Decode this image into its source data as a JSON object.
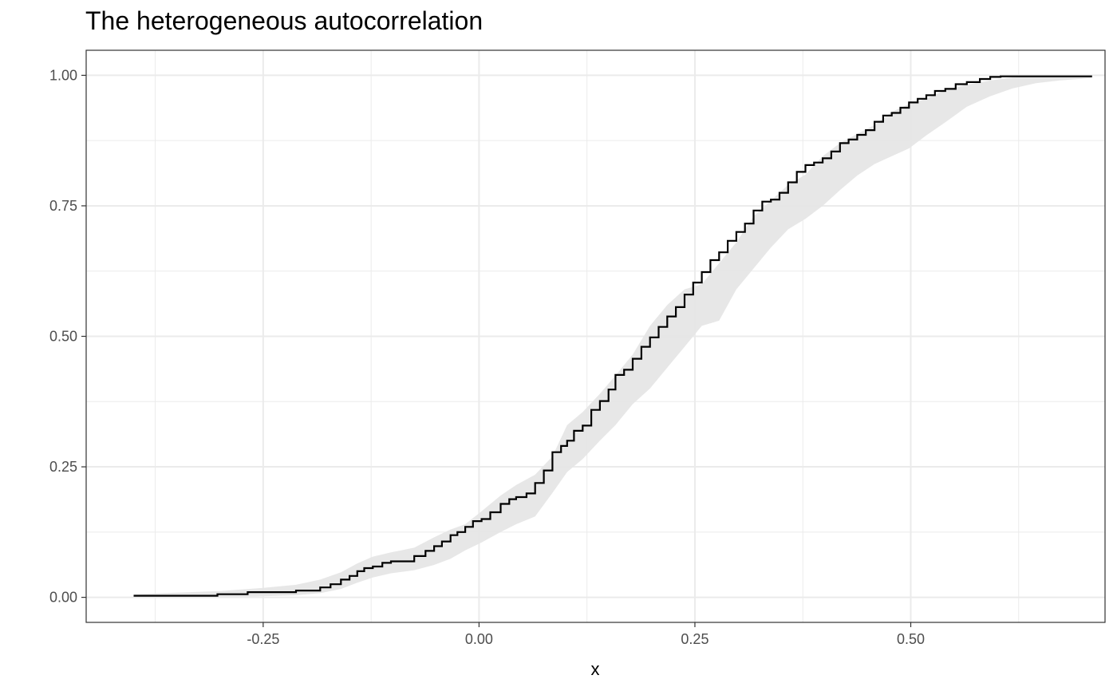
{
  "chart_data": {
    "type": "line",
    "title": "The heterogeneous autocorrelation",
    "xlabel": "x",
    "ylabel": "",
    "xlim": [
      -0.455,
      0.725
    ],
    "ylim": [
      -0.048,
      1.048
    ],
    "x_ticks": [
      -0.25,
      0.0,
      0.25,
      0.5
    ],
    "x_tick_labels": [
      "-0.25",
      "0.00",
      "0.25",
      "0.50"
    ],
    "y_ticks": [
      0.0,
      0.25,
      0.5,
      0.75,
      1.0
    ],
    "y_tick_labels": [
      "0.00",
      "0.25",
      "0.50",
      "0.75",
      "1.00"
    ],
    "grid": true,
    "legend": "none",
    "colors": {
      "line": "#000000",
      "band": "#e6e6e6",
      "grid": "#ebebeb",
      "panel_border": "#333333"
    },
    "series": [
      {
        "kind": "step",
        "x": [
          -0.4,
          -0.303,
          -0.268,
          -0.212,
          -0.184,
          -0.172,
          -0.16,
          -0.15,
          -0.141,
          -0.133,
          -0.123,
          -0.112,
          -0.102,
          -0.075,
          -0.062,
          -0.052,
          -0.043,
          -0.033,
          -0.025,
          -0.016,
          -0.007,
          0.003,
          0.013,
          0.025,
          0.035,
          0.043,
          0.055,
          0.065,
          0.075,
          0.085,
          0.095,
          0.102,
          0.11,
          0.12,
          0.13,
          0.14,
          0.15,
          0.158,
          0.168,
          0.178,
          0.188,
          0.198,
          0.208,
          0.218,
          0.228,
          0.238,
          0.248,
          0.258,
          0.268,
          0.278,
          0.288,
          0.298,
          0.308,
          0.318,
          0.328,
          0.338,
          0.348,
          0.358,
          0.368,
          0.378,
          0.388,
          0.398,
          0.408,
          0.418,
          0.428,
          0.438,
          0.448,
          0.458,
          0.468,
          0.478,
          0.488,
          0.498,
          0.508,
          0.518,
          0.528,
          0.54,
          0.552,
          0.565,
          0.58,
          0.592,
          0.604,
          0.618,
          0.632,
          0.645,
          0.658,
          0.672,
          0.695,
          0.71
        ],
        "y": [
          0.003,
          0.006,
          0.01,
          0.013,
          0.019,
          0.025,
          0.034,
          0.041,
          0.05,
          0.056,
          0.059,
          0.066,
          0.069,
          0.079,
          0.089,
          0.098,
          0.107,
          0.119,
          0.125,
          0.135,
          0.146,
          0.15,
          0.163,
          0.179,
          0.188,
          0.192,
          0.199,
          0.219,
          0.243,
          0.278,
          0.29,
          0.3,
          0.319,
          0.329,
          0.359,
          0.376,
          0.398,
          0.426,
          0.436,
          0.457,
          0.48,
          0.498,
          0.518,
          0.538,
          0.556,
          0.58,
          0.603,
          0.623,
          0.646,
          0.661,
          0.683,
          0.7,
          0.716,
          0.741,
          0.758,
          0.762,
          0.775,
          0.795,
          0.815,
          0.828,
          0.833,
          0.841,
          0.854,
          0.87,
          0.877,
          0.886,
          0.895,
          0.911,
          0.923,
          0.928,
          0.938,
          0.948,
          0.955,
          0.962,
          0.97,
          0.974,
          0.983,
          0.987,
          0.993,
          0.997,
          0.998,
          0.998,
          0.998,
          0.998,
          0.998,
          0.998,
          0.998,
          0.998
        ]
      },
      {
        "kind": "ribbon",
        "x": [
          -0.4,
          -0.3,
          -0.25,
          -0.212,
          -0.184,
          -0.16,
          -0.141,
          -0.123,
          -0.102,
          -0.075,
          -0.052,
          -0.033,
          -0.016,
          0.003,
          0.025,
          0.043,
          0.065,
          0.085,
          0.102,
          0.12,
          0.14,
          0.158,
          0.178,
          0.198,
          0.218,
          0.238,
          0.258,
          0.278,
          0.298,
          0.318,
          0.338,
          0.358,
          0.378,
          0.398,
          0.418,
          0.438,
          0.458,
          0.478,
          0.498,
          0.518,
          0.54,
          0.565,
          0.592,
          0.618,
          0.645,
          0.672,
          0.71
        ],
        "ymin": [
          0.0,
          0.0,
          0.002,
          0.004,
          0.008,
          0.016,
          0.028,
          0.038,
          0.046,
          0.052,
          0.062,
          0.074,
          0.09,
          0.105,
          0.125,
          0.14,
          0.155,
          0.2,
          0.24,
          0.265,
          0.3,
          0.33,
          0.37,
          0.4,
          0.44,
          0.48,
          0.52,
          0.53,
          0.59,
          0.63,
          0.67,
          0.705,
          0.725,
          0.75,
          0.78,
          0.808,
          0.83,
          0.845,
          0.86,
          0.885,
          0.91,
          0.94,
          0.96,
          0.975,
          0.985,
          0.99,
          0.995
        ],
        "ymax": [
          0.006,
          0.012,
          0.018,
          0.024,
          0.034,
          0.048,
          0.065,
          0.078,
          0.086,
          0.095,
          0.115,
          0.13,
          0.14,
          0.165,
          0.195,
          0.215,
          0.235,
          0.27,
          0.33,
          0.355,
          0.39,
          0.425,
          0.465,
          0.52,
          0.56,
          0.59,
          0.6,
          0.64,
          0.68,
          0.73,
          0.76,
          0.79,
          0.81,
          0.845,
          0.87,
          0.888,
          0.905,
          0.93,
          0.945,
          0.955,
          0.972,
          0.982,
          0.99,
          0.996,
          0.999,
          1.0,
          1.0
        ]
      }
    ]
  }
}
